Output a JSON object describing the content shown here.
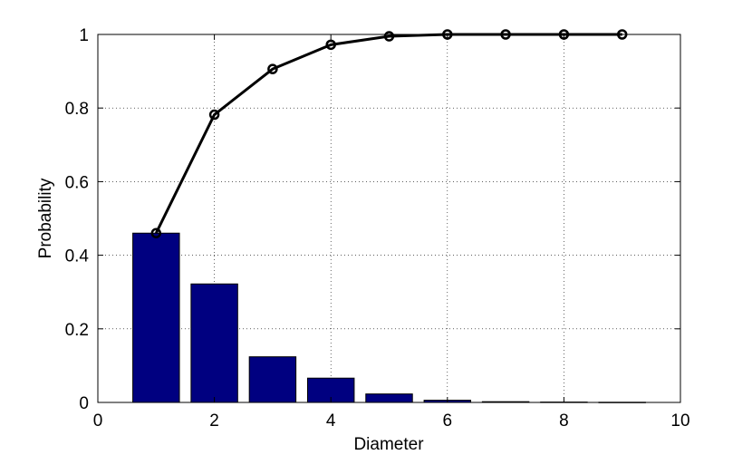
{
  "chart_data": {
    "type": "bar",
    "xlabel": "Diameter",
    "ylabel": "Probability",
    "xlim": [
      0,
      10
    ],
    "ylim": [
      0,
      1
    ],
    "xticks": [
      "0",
      "2",
      "4",
      "6",
      "8",
      "10"
    ],
    "yticks": [
      "0",
      "0.2",
      "0.4",
      "0.6",
      "0.8",
      "1"
    ],
    "grid": true,
    "series": [
      {
        "type": "bar",
        "color": "#000080",
        "x": [
          1,
          2,
          3,
          4,
          5,
          6,
          7,
          8,
          9
        ],
        "values": [
          0.46,
          0.322,
          0.124,
          0.066,
          0.023,
          0.006,
          0.002,
          0.001,
          0.0005
        ]
      },
      {
        "type": "line",
        "color": "#000000",
        "marker": "circle",
        "x": [
          1,
          2,
          3,
          4,
          5,
          6,
          7,
          8,
          9
        ],
        "values": [
          0.46,
          0.782,
          0.906,
          0.972,
          0.995,
          1.0,
          1.0,
          1.0,
          1.0
        ]
      }
    ]
  }
}
